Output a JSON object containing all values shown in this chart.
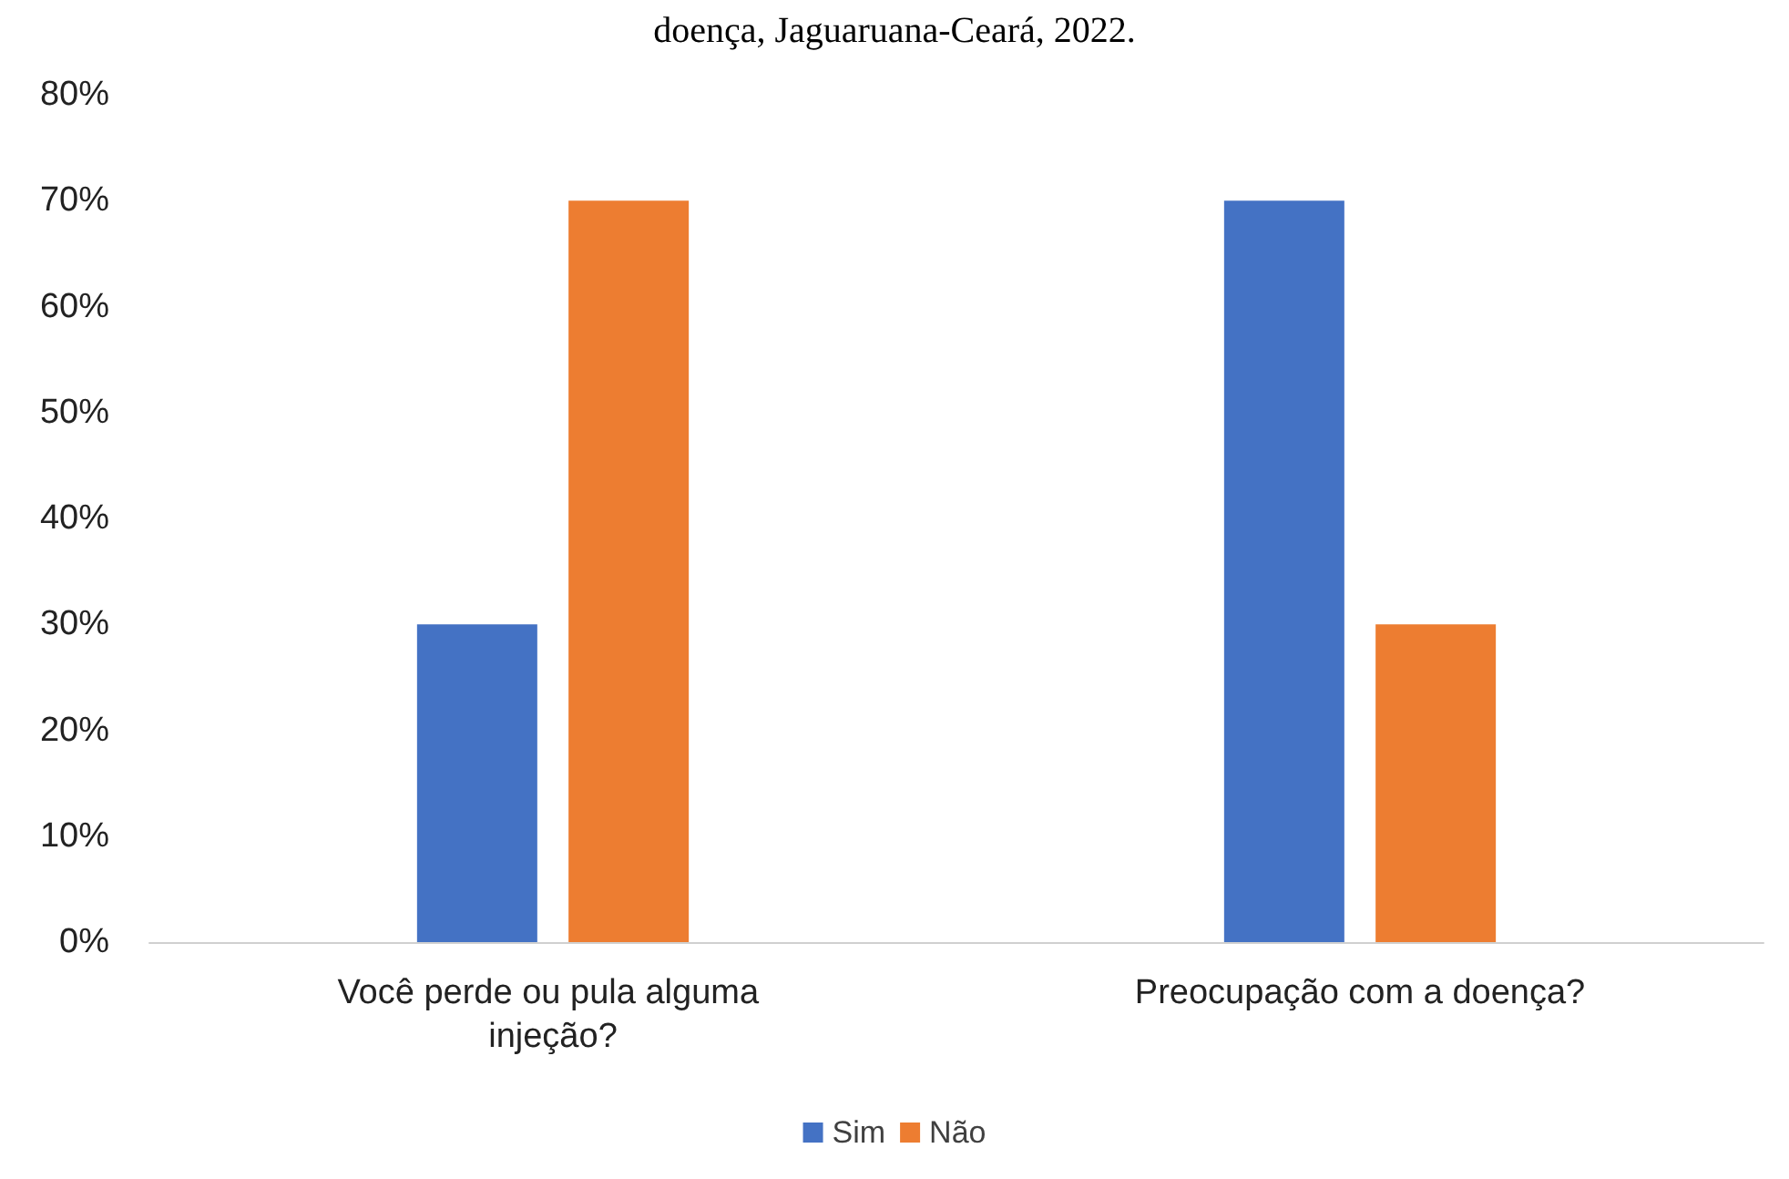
{
  "chart_data": {
    "type": "bar",
    "title": "doença, Jaguaruana-Ceará, 2022.",
    "categories": [
      "Você perde ou pula alguma injeção?",
      "Preocupação com a doença?"
    ],
    "series": [
      {
        "name": "Sim",
        "color": "#4472c4",
        "values": [
          30,
          70
        ]
      },
      {
        "name": "Não",
        "color": "#ed7d31",
        "values": [
          70,
          30
        ]
      }
    ],
    "ylim": [
      0,
      80
    ],
    "yticks": [
      {
        "value": 0,
        "label": "0%"
      },
      {
        "value": 10,
        "label": "10%"
      },
      {
        "value": 20,
        "label": "20%"
      },
      {
        "value": 30,
        "label": "30%"
      },
      {
        "value": 40,
        "label": "40%"
      },
      {
        "value": 50,
        "label": "50%"
      },
      {
        "value": 60,
        "label": "60%"
      },
      {
        "value": 70,
        "label": "70%"
      },
      {
        "value": 80,
        "label": "80%"
      }
    ],
    "grid": false,
    "legend": "bottom"
  }
}
